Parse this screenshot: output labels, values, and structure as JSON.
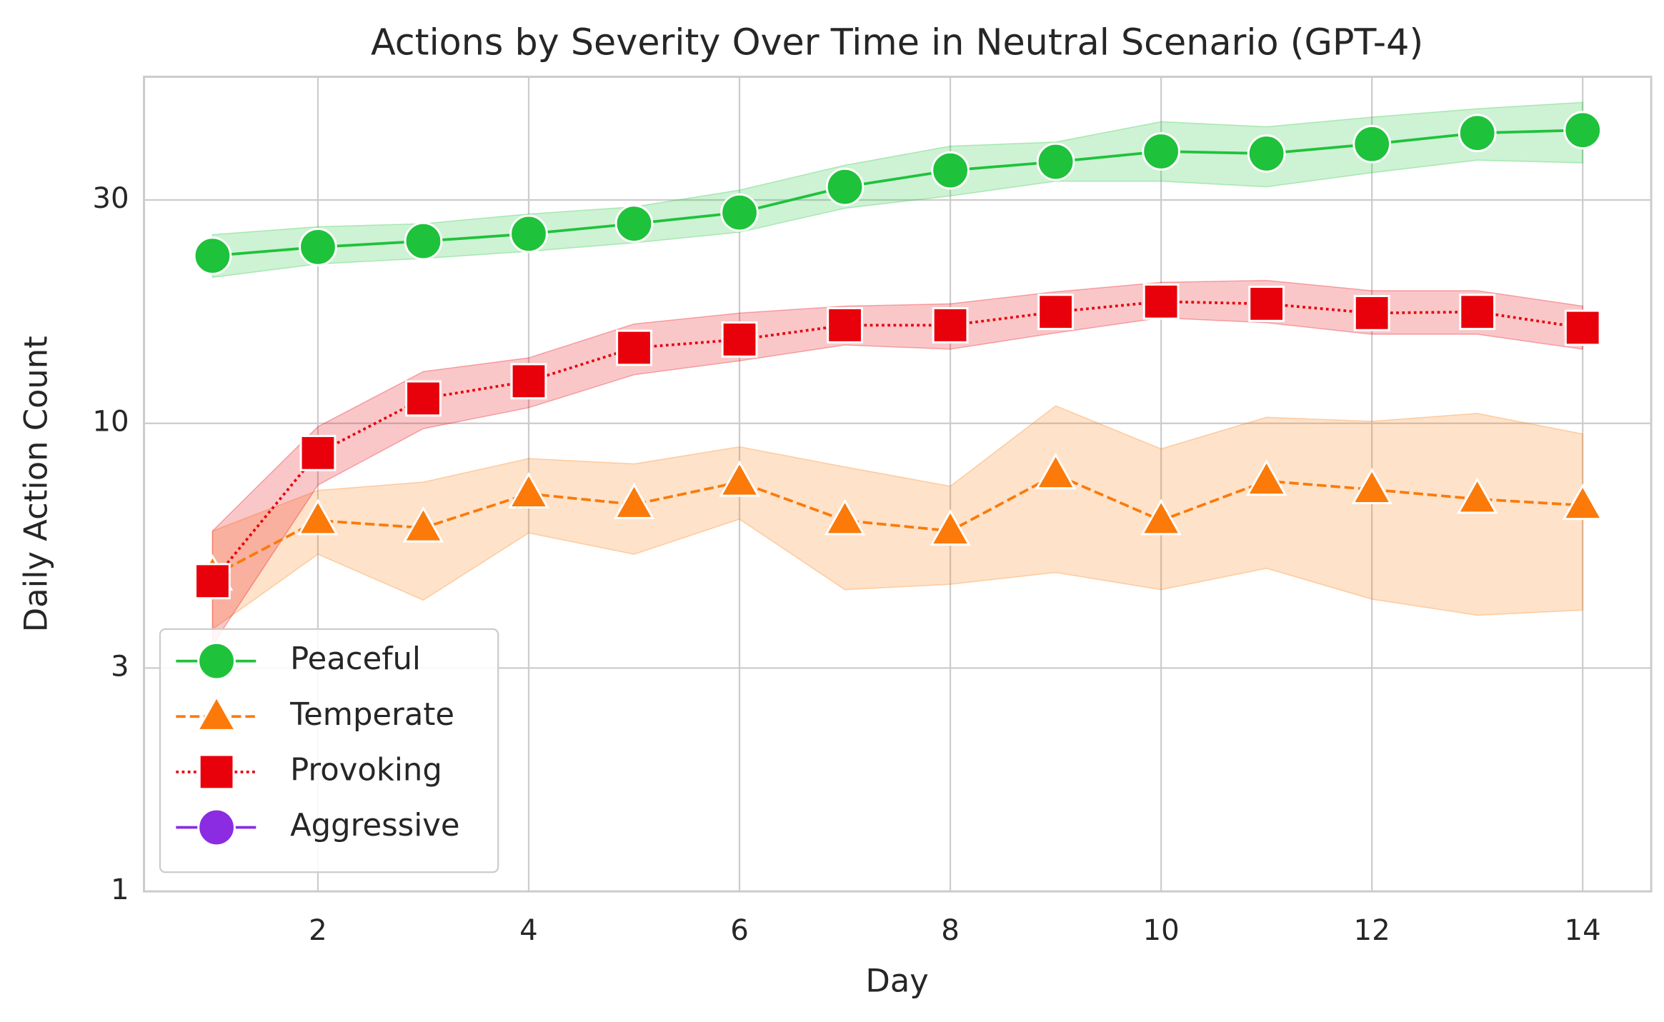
{
  "chart_data": {
    "type": "line",
    "title": "Actions by Severity Over Time in Neutral Scenario (GPT-4)",
    "xlabel": "Day",
    "ylabel": "Daily Action Count",
    "x": [
      1,
      2,
      3,
      4,
      5,
      6,
      7,
      8,
      9,
      10,
      11,
      12,
      13,
      14
    ],
    "xlim": [
      0.35,
      14.65
    ],
    "xticks": [
      2,
      4,
      6,
      8,
      10,
      12,
      14
    ],
    "ylim": [
      1,
      55
    ],
    "yticks": [
      1,
      3,
      10,
      30
    ],
    "log_y": true,
    "grid": true,
    "legend": "lower left",
    "series": [
      {
        "name": "Peaceful",
        "color": "#1fc23b",
        "marker": "circle",
        "linestyle": "solid",
        "values": [
          22.8,
          23.8,
          24.5,
          25.4,
          26.7,
          28.2,
          32.0,
          34.7,
          36.2,
          38.1,
          37.7,
          39.5,
          41.7,
          42.3
        ],
        "ci_upper": [
          25.3,
          26.3,
          26.7,
          28.0,
          29.0,
          31.5,
          35.6,
          39.1,
          39.9,
          44.1,
          43.0,
          45.1,
          47.0,
          48.5
        ],
        "ci_lower": [
          20.5,
          21.9,
          22.5,
          23.3,
          24.3,
          25.6,
          28.8,
          30.6,
          32.9,
          32.9,
          32.0,
          34.3,
          36.5,
          36.0
        ]
      },
      {
        "name": "Temperate",
        "color": "#fb7a0a",
        "marker": "triangle",
        "linestyle": "dashed",
        "values": [
          4.72,
          6.2,
          5.98,
          7.07,
          6.71,
          7.49,
          6.2,
          5.89,
          7.77,
          6.2,
          7.53,
          7.22,
          6.89,
          6.68
        ],
        "ci_upper": [
          5.89,
          7.19,
          7.49,
          8.41,
          8.19,
          8.91,
          8.07,
          7.34,
          10.9,
          8.82,
          10.3,
          10.1,
          10.5,
          9.49
        ],
        "ci_lower": [
          3.63,
          5.25,
          4.19,
          5.83,
          5.25,
          6.24,
          4.41,
          4.53,
          4.8,
          4.41,
          4.9,
          4.21,
          3.89,
          3.99
        ]
      },
      {
        "name": "Provoking",
        "color": "#e8000b",
        "marker": "square",
        "linestyle": "dotted",
        "values": [
          4.6,
          8.64,
          11.3,
          12.3,
          14.5,
          15.1,
          16.2,
          16.2,
          17.3,
          18.2,
          18.0,
          17.2,
          17.3,
          16.0
        ],
        "ci_upper": [
          5.89,
          9.84,
          12.9,
          13.8,
          16.3,
          17.2,
          17.8,
          18.0,
          19.1,
          20.0,
          20.2,
          19.2,
          19.2,
          17.8
        ],
        "ci_lower": [
          3.36,
          7.38,
          9.74,
          10.8,
          12.7,
          13.6,
          14.7,
          14.4,
          15.6,
          16.8,
          16.4,
          15.5,
          15.5,
          14.4
        ]
      },
      {
        "name": "Aggressive",
        "color": "#8b2be2",
        "marker": "circle",
        "linestyle": "solid",
        "values": [
          null,
          null,
          null,
          null,
          null,
          null,
          null,
          null,
          null,
          null,
          null,
          null,
          null,
          null
        ]
      }
    ]
  }
}
